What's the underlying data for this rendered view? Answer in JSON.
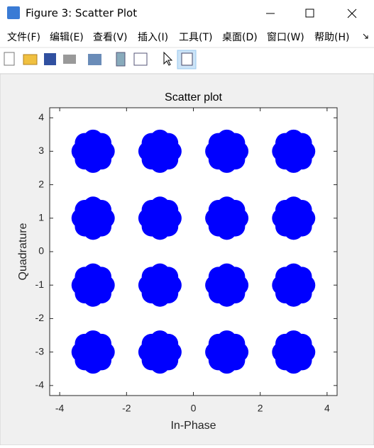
{
  "window": {
    "title": "Figure 3: Scatter Plot",
    "menu": [
      "文件(F)",
      "编辑(E)",
      "查看(V)",
      "插入(I)",
      "工具(T)",
      "桌面(D)",
      "窗口(W)",
      "帮助(H)"
    ]
  },
  "chart_data": {
    "type": "scatter",
    "title": "Scatter plot",
    "x_label": "In-Phase",
    "y_label": "Quadrature",
    "xlim": [
      -4.3,
      4.3
    ],
    "ylim": [
      -4.3,
      4.3
    ],
    "xticks": [
      -4,
      -2,
      0,
      2,
      4
    ],
    "yticks": [
      -4,
      -3,
      -2,
      -1,
      0,
      1,
      2,
      3,
      4
    ],
    "series": [
      {
        "color": "#0000ff",
        "x": [
          -3,
          -2.65,
          -3.35,
          -3,
          -3,
          -2.75,
          -2.75,
          -3.25,
          -3.25,
          -1,
          -0.65,
          -1.35,
          -1,
          -1,
          -0.75,
          -0.75,
          -1.25,
          -1.25,
          1,
          1.35,
          0.65,
          1,
          1,
          1.25,
          1.25,
          0.75,
          0.75,
          3,
          3.35,
          2.65,
          3,
          3,
          3.25,
          3.25,
          2.75,
          2.75,
          -3,
          -2.65,
          -3.35,
          -3,
          -3,
          -2.75,
          -2.75,
          -3.25,
          -3.25,
          -1,
          -0.65,
          -1.35,
          -1,
          -1,
          -0.75,
          -0.75,
          -1.25,
          -1.25,
          1,
          1.35,
          0.65,
          1,
          1,
          1.25,
          1.25,
          0.75,
          0.75,
          3,
          3.35,
          2.65,
          3,
          3,
          3.25,
          3.25,
          2.75,
          2.75,
          -3,
          -2.65,
          -3.35,
          -3,
          -3,
          -2.75,
          -2.75,
          -3.25,
          -3.25,
          -1,
          -0.65,
          -1.35,
          -1,
          -1,
          -0.75,
          -0.75,
          -1.25,
          -1.25,
          1,
          1.35,
          0.65,
          1,
          1,
          1.25,
          1.25,
          0.75,
          0.75,
          3,
          3.35,
          2.65,
          3,
          3,
          3.25,
          3.25,
          2.75,
          2.75,
          -3,
          -2.65,
          -3.35,
          -3,
          -3,
          -2.75,
          -2.75,
          -3.25,
          -3.25,
          -1,
          -0.65,
          -1.35,
          -1,
          -1,
          -0.75,
          -0.75,
          -1.25,
          -1.25,
          1,
          1.35,
          0.65,
          1,
          1,
          1.25,
          1.25,
          0.75,
          0.75,
          3,
          3.35,
          2.65,
          3,
          3,
          3.25,
          3.25,
          2.75,
          2.75
        ],
        "y": [
          3,
          3,
          3,
          3.35,
          2.65,
          3.25,
          2.75,
          3.25,
          2.75,
          3,
          3,
          3,
          3.35,
          2.65,
          3.25,
          2.75,
          3.25,
          2.75,
          3,
          3,
          3,
          3.35,
          2.65,
          3.25,
          2.75,
          3.25,
          2.75,
          3,
          3,
          3,
          3.35,
          2.65,
          3.25,
          2.75,
          3.25,
          2.75,
          1,
          1,
          1,
          1.35,
          0.65,
          1.25,
          0.75,
          1.25,
          0.75,
          1,
          1,
          1,
          1.35,
          0.65,
          1.25,
          0.75,
          1.25,
          0.75,
          1,
          1,
          1,
          1.35,
          0.65,
          1.25,
          0.75,
          1.25,
          0.75,
          1,
          1,
          1,
          1.35,
          0.65,
          1.25,
          0.75,
          1.25,
          0.75,
          -1,
          -1,
          -1,
          -0.65,
          -1.35,
          -0.75,
          -1.25,
          -0.75,
          -1.25,
          -1,
          -1,
          -1,
          -0.65,
          -1.35,
          -0.75,
          -1.25,
          -0.75,
          -1.25,
          -1,
          -1,
          -1,
          -0.65,
          -1.35,
          -0.75,
          -1.25,
          -0.75,
          -1.25,
          -1,
          -1,
          -1,
          -0.65,
          -1.35,
          -0.75,
          -1.25,
          -0.75,
          -1.25,
          -3,
          -3,
          -3,
          -2.65,
          -3.35,
          -2.75,
          -3.25,
          -2.75,
          -3.25,
          -3,
          -3,
          -3,
          -2.65,
          -3.35,
          -2.75,
          -3.25,
          -2.75,
          -3.25,
          -3,
          -3,
          -3,
          -2.65,
          -3.35,
          -2.75,
          -3.25,
          -2.75,
          -3.25,
          -3,
          -3,
          -3,
          -2.65,
          -3.35,
          -2.75,
          -3.25,
          -2.75,
          -3.25
        ]
      }
    ]
  }
}
